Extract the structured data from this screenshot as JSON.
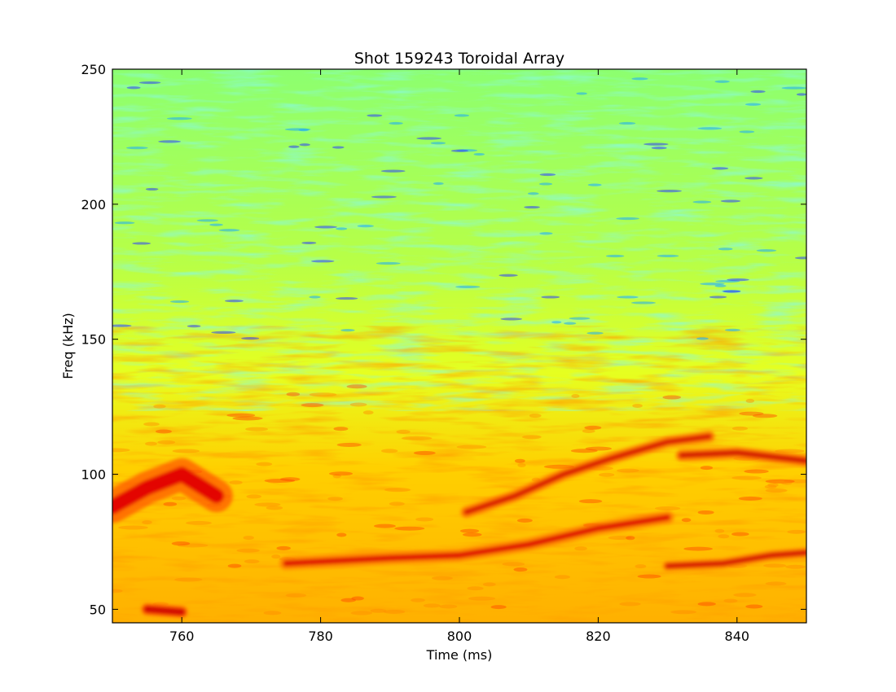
{
  "chart_data": {
    "type": "heatmap",
    "title": "Shot 159243 Toroidal Array",
    "xlabel": "Time (ms)",
    "ylabel": "Freq (kHz)",
    "xlim": [
      750,
      850
    ],
    "ylim": [
      45,
      250
    ],
    "xticks": [
      760,
      780,
      800,
      820,
      840
    ],
    "yticks": [
      50,
      100,
      150,
      200,
      250
    ],
    "colormap": "jet",
    "background_level": "yellow-green noise, greener/cyan above ~150 kHz, orange below ~130 kHz",
    "features": [
      {
        "label": "rising mode",
        "points": [
          [
            801,
            86
          ],
          [
            808,
            92
          ],
          [
            815,
            100
          ],
          [
            822,
            106
          ],
          [
            830,
            112
          ],
          [
            836,
            114
          ]
        ]
      },
      {
        "label": "chirping mode",
        "points": [
          [
            775,
            67
          ],
          [
            790,
            69
          ],
          [
            800,
            70
          ],
          [
            810,
            74
          ],
          [
            820,
            80
          ],
          [
            830,
            84
          ]
        ]
      },
      {
        "label": "constant mode ~105 kHz",
        "points": [
          [
            832,
            107
          ],
          [
            840,
            108
          ],
          [
            850,
            105
          ]
        ]
      },
      {
        "label": "low-frequency mode",
        "points": [
          [
            830,
            66
          ],
          [
            838,
            67
          ],
          [
            845,
            70
          ],
          [
            850,
            71
          ]
        ]
      },
      {
        "label": "broadband low-frequency",
        "points": [
          [
            750,
            88
          ],
          [
            755,
            95
          ],
          [
            760,
            100
          ],
          [
            765,
            92
          ]
        ]
      },
      {
        "label": "edge feature ~50 kHz",
        "points": [
          [
            755,
            50
          ],
          [
            760,
            49
          ]
        ]
      }
    ]
  }
}
